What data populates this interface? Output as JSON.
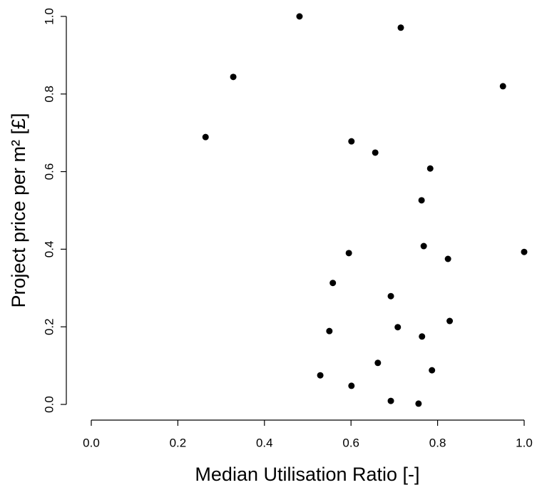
{
  "chart_data": {
    "type": "scatter",
    "x_label": "Median Utilisation Ratio [-]",
    "y_label": "Project price per m² [£]",
    "color": "#000000",
    "xlim": [
      0,
      1
    ],
    "ylim": [
      0,
      1
    ],
    "xticks": [
      {
        "value": 0,
        "label": "0.0"
      },
      0.2,
      0.4,
      0.6,
      0.8,
      {
        "value": 1,
        "label": "1.0"
      }
    ],
    "yticks": [
      {
        "value": 0,
        "label": "0.0"
      },
      0.2,
      0.4,
      0.6,
      0.8,
      {
        "value": 1,
        "label": "1.0"
      }
    ],
    "x": [
      0.481,
      0.715,
      0.328,
      0.951,
      0.264,
      0.601,
      0.656,
      0.783,
      0.763,
      0.768,
      0.595,
      0.824,
      1.0,
      0.558,
      0.692,
      0.828,
      0.55,
      0.708,
      0.764,
      0.662,
      0.787,
      0.529,
      0.601,
      0.692,
      0.756
    ],
    "values": [
      1.0,
      0.971,
      0.844,
      0.82,
      0.689,
      0.678,
      0.649,
      0.608,
      0.526,
      0.408,
      0.39,
      0.375,
      0.393,
      0.313,
      0.279,
      0.215,
      0.189,
      0.199,
      0.175,
      0.107,
      0.088,
      0.075,
      0.048,
      0.009,
      0.002
    ]
  }
}
